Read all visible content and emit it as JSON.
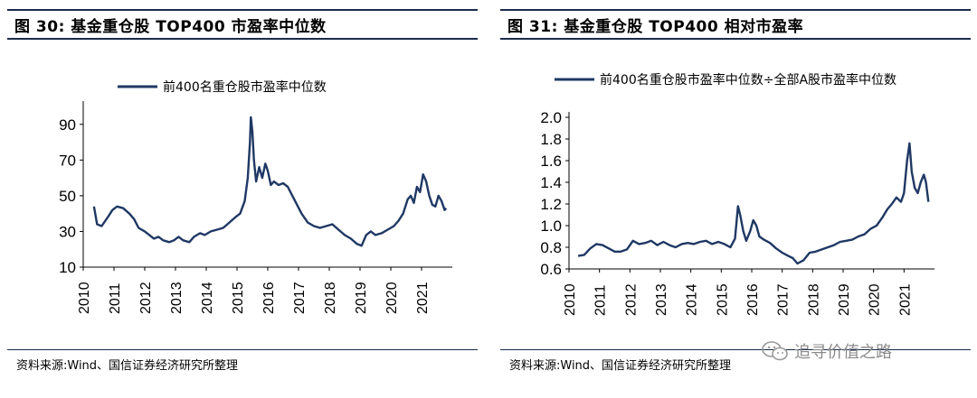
{
  "left": {
    "title": "图 30: 基金重仓股 TOP400 市盈率中位数",
    "source": "资料来源:Wind、国信证券经济研究所整理"
  },
  "right": {
    "title": "图 31: 基金重仓股 TOP400 相对市盈率",
    "source": "资料来源:Wind、国信证券经济研究所整理"
  },
  "watermark": {
    "text": "追寻价值之路",
    "icon": "wechat-icon"
  },
  "chart_data": [
    {
      "type": "line",
      "title": "",
      "xlabel": "",
      "ylabel": "",
      "ylim": [
        10,
        100
      ],
      "yticks": [
        10,
        30,
        50,
        70,
        90
      ],
      "xlim": [
        2010,
        2022
      ],
      "xticks": [
        "2010",
        "2011",
        "2012",
        "2013",
        "2014",
        "2015",
        "2016",
        "2017",
        "2018",
        "2019",
        "2020",
        "2021"
      ],
      "legend": "top-center",
      "grid": false,
      "series": [
        {
          "name": "前400名重仓股市盈率中位数",
          "color": "#1f3864",
          "points": [
            [
              2010.35,
              44
            ],
            [
              2010.45,
              34
            ],
            [
              2010.6,
              33
            ],
            [
              2010.8,
              38
            ],
            [
              2010.95,
              42
            ],
            [
              2011.1,
              44
            ],
            [
              2011.3,
              43
            ],
            [
              2011.5,
              40
            ],
            [
              2011.65,
              37
            ],
            [
              2011.8,
              32
            ],
            [
              2012.0,
              30
            ],
            [
              2012.15,
              28
            ],
            [
              2012.3,
              26
            ],
            [
              2012.45,
              27
            ],
            [
              2012.6,
              25
            ],
            [
              2012.8,
              24
            ],
            [
              2012.95,
              25
            ],
            [
              2013.1,
              27
            ],
            [
              2013.25,
              25
            ],
            [
              2013.45,
              24
            ],
            [
              2013.6,
              27
            ],
            [
              2013.8,
              29
            ],
            [
              2013.95,
              28
            ],
            [
              2014.15,
              30
            ],
            [
              2014.35,
              31
            ],
            [
              2014.55,
              32
            ],
            [
              2014.75,
              35
            ],
            [
              2014.95,
              38
            ],
            [
              2015.1,
              40
            ],
            [
              2015.25,
              47
            ],
            [
              2015.35,
              60
            ],
            [
              2015.42,
              80
            ],
            [
              2015.45,
              94
            ],
            [
              2015.5,
              86
            ],
            [
              2015.55,
              70
            ],
            [
              2015.62,
              58
            ],
            [
              2015.72,
              66
            ],
            [
              2015.82,
              60
            ],
            [
              2015.92,
              68
            ],
            [
              2016.0,
              64
            ],
            [
              2016.1,
              56
            ],
            [
              2016.2,
              58
            ],
            [
              2016.35,
              56
            ],
            [
              2016.5,
              57
            ],
            [
              2016.65,
              55
            ],
            [
              2016.8,
              50
            ],
            [
              2016.95,
              45
            ],
            [
              2017.1,
              40
            ],
            [
              2017.3,
              35
            ],
            [
              2017.5,
              33
            ],
            [
              2017.7,
              32
            ],
            [
              2017.9,
              33
            ],
            [
              2018.1,
              34
            ],
            [
              2018.3,
              31
            ],
            [
              2018.5,
              28
            ],
            [
              2018.7,
              26
            ],
            [
              2018.9,
              23
            ],
            [
              2019.05,
              22
            ],
            [
              2019.2,
              28
            ],
            [
              2019.35,
              30
            ],
            [
              2019.5,
              28
            ],
            [
              2019.7,
              29
            ],
            [
              2019.9,
              31
            ],
            [
              2020.1,
              33
            ],
            [
              2020.25,
              36
            ],
            [
              2020.4,
              40
            ],
            [
              2020.55,
              48
            ],
            [
              2020.65,
              50
            ],
            [
              2020.75,
              46
            ],
            [
              2020.85,
              55
            ],
            [
              2020.95,
              52
            ],
            [
              2021.05,
              62
            ],
            [
              2021.15,
              58
            ],
            [
              2021.25,
              50
            ],
            [
              2021.35,
              45
            ],
            [
              2021.45,
              44
            ],
            [
              2021.55,
              50
            ],
            [
              2021.65,
              47
            ],
            [
              2021.75,
              42
            ],
            [
              2021.8,
              43
            ]
          ]
        }
      ]
    },
    {
      "type": "line",
      "title": "",
      "xlabel": "",
      "ylabel": "",
      "ylim": [
        0.6,
        2.0
      ],
      "yticks": [
        "0.6",
        "0.8",
        "1.0",
        "1.2",
        "1.4",
        "1.6",
        "1.8",
        "2.0"
      ],
      "xlim": [
        2010,
        2022
      ],
      "xticks": [
        "2010",
        "2011",
        "2012",
        "2013",
        "2014",
        "2015",
        "2016",
        "2017",
        "2018",
        "2019",
        "2020",
        "2021"
      ],
      "legend": "top-center",
      "grid": false,
      "series": [
        {
          "name": "前400名重仓股市盈率中位数÷全部A股市盈率中位数",
          "color": "#1f3864",
          "points": [
            [
              2010.3,
              0.72
            ],
            [
              2010.5,
              0.73
            ],
            [
              2010.7,
              0.79
            ],
            [
              2010.9,
              0.83
            ],
            [
              2011.1,
              0.82
            ],
            [
              2011.3,
              0.79
            ],
            [
              2011.5,
              0.76
            ],
            [
              2011.7,
              0.76
            ],
            [
              2011.9,
              0.78
            ],
            [
              2012.1,
              0.86
            ],
            [
              2012.3,
              0.83
            ],
            [
              2012.5,
              0.84
            ],
            [
              2012.7,
              0.86
            ],
            [
              2012.9,
              0.82
            ],
            [
              2013.1,
              0.85
            ],
            [
              2013.3,
              0.82
            ],
            [
              2013.5,
              0.8
            ],
            [
              2013.7,
              0.83
            ],
            [
              2013.9,
              0.84
            ],
            [
              2014.1,
              0.83
            ],
            [
              2014.3,
              0.85
            ],
            [
              2014.5,
              0.86
            ],
            [
              2014.7,
              0.83
            ],
            [
              2014.9,
              0.85
            ],
            [
              2015.1,
              0.83
            ],
            [
              2015.3,
              0.8
            ],
            [
              2015.45,
              0.88
            ],
            [
              2015.55,
              1.18
            ],
            [
              2015.62,
              1.1
            ],
            [
              2015.72,
              0.95
            ],
            [
              2015.82,
              0.86
            ],
            [
              2015.95,
              0.95
            ],
            [
              2016.05,
              1.05
            ],
            [
              2016.15,
              1.0
            ],
            [
              2016.25,
              0.9
            ],
            [
              2016.4,
              0.87
            ],
            [
              2016.6,
              0.84
            ],
            [
              2016.8,
              0.79
            ],
            [
              2017.0,
              0.75
            ],
            [
              2017.2,
              0.72
            ],
            [
              2017.35,
              0.7
            ],
            [
              2017.5,
              0.65
            ],
            [
              2017.7,
              0.68
            ],
            [
              2017.9,
              0.75
            ],
            [
              2018.1,
              0.76
            ],
            [
              2018.3,
              0.78
            ],
            [
              2018.5,
              0.8
            ],
            [
              2018.7,
              0.82
            ],
            [
              2018.9,
              0.85
            ],
            [
              2019.1,
              0.86
            ],
            [
              2019.3,
              0.87
            ],
            [
              2019.5,
              0.9
            ],
            [
              2019.7,
              0.92
            ],
            [
              2019.9,
              0.97
            ],
            [
              2020.1,
              1.0
            ],
            [
              2020.3,
              1.08
            ],
            [
              2020.45,
              1.15
            ],
            [
              2020.6,
              1.2
            ],
            [
              2020.75,
              1.26
            ],
            [
              2020.9,
              1.22
            ],
            [
              2021.0,
              1.3
            ],
            [
              2021.1,
              1.6
            ],
            [
              2021.18,
              1.76
            ],
            [
              2021.25,
              1.5
            ],
            [
              2021.35,
              1.35
            ],
            [
              2021.45,
              1.3
            ],
            [
              2021.55,
              1.4
            ],
            [
              2021.65,
              1.47
            ],
            [
              2021.72,
              1.4
            ],
            [
              2021.8,
              1.22
            ]
          ]
        }
      ]
    }
  ]
}
